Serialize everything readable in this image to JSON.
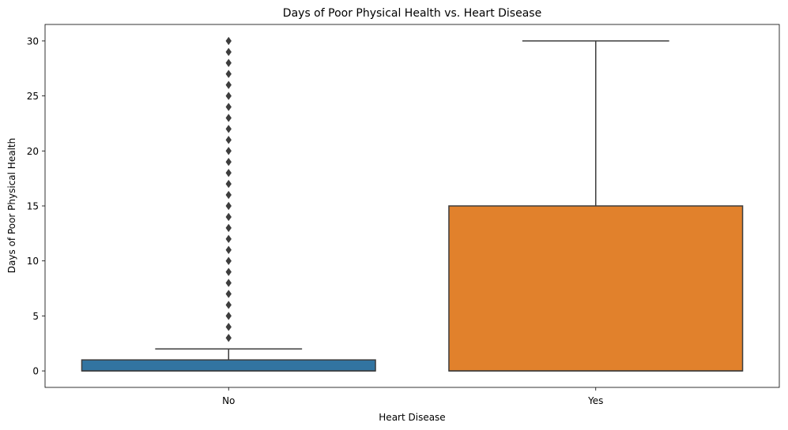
{
  "chart_data": {
    "type": "box",
    "title": "Days of Poor Physical Health vs. Heart Disease",
    "xlabel": "Heart Disease",
    "ylabel": "Days of Poor Physical Health",
    "categories": [
      "No",
      "Yes"
    ],
    "ylim": [
      -1.5,
      31.5
    ],
    "yticks": [
      0,
      5,
      10,
      15,
      20,
      25,
      30
    ],
    "grid": false,
    "boxes": [
      {
        "category": "No",
        "color": "#3274a1",
        "min": 0,
        "q1": 0,
        "median": 0,
        "q3": 1,
        "whisker_low": 0,
        "whisker_high": 2,
        "outliers": [
          3,
          4,
          5,
          6,
          7,
          8,
          9,
          10,
          11,
          12,
          13,
          14,
          15,
          16,
          17,
          18,
          19,
          20,
          21,
          22,
          23,
          24,
          25,
          26,
          27,
          28,
          29,
          30
        ]
      },
      {
        "category": "Yes",
        "color": "#e1812c",
        "min": 0,
        "q1": 0,
        "median": 0,
        "q3": 15,
        "whisker_low": 0,
        "whisker_high": 30,
        "outliers": []
      }
    ],
    "colors": {
      "line": "#3d3d3d",
      "axes": "#000000"
    }
  }
}
